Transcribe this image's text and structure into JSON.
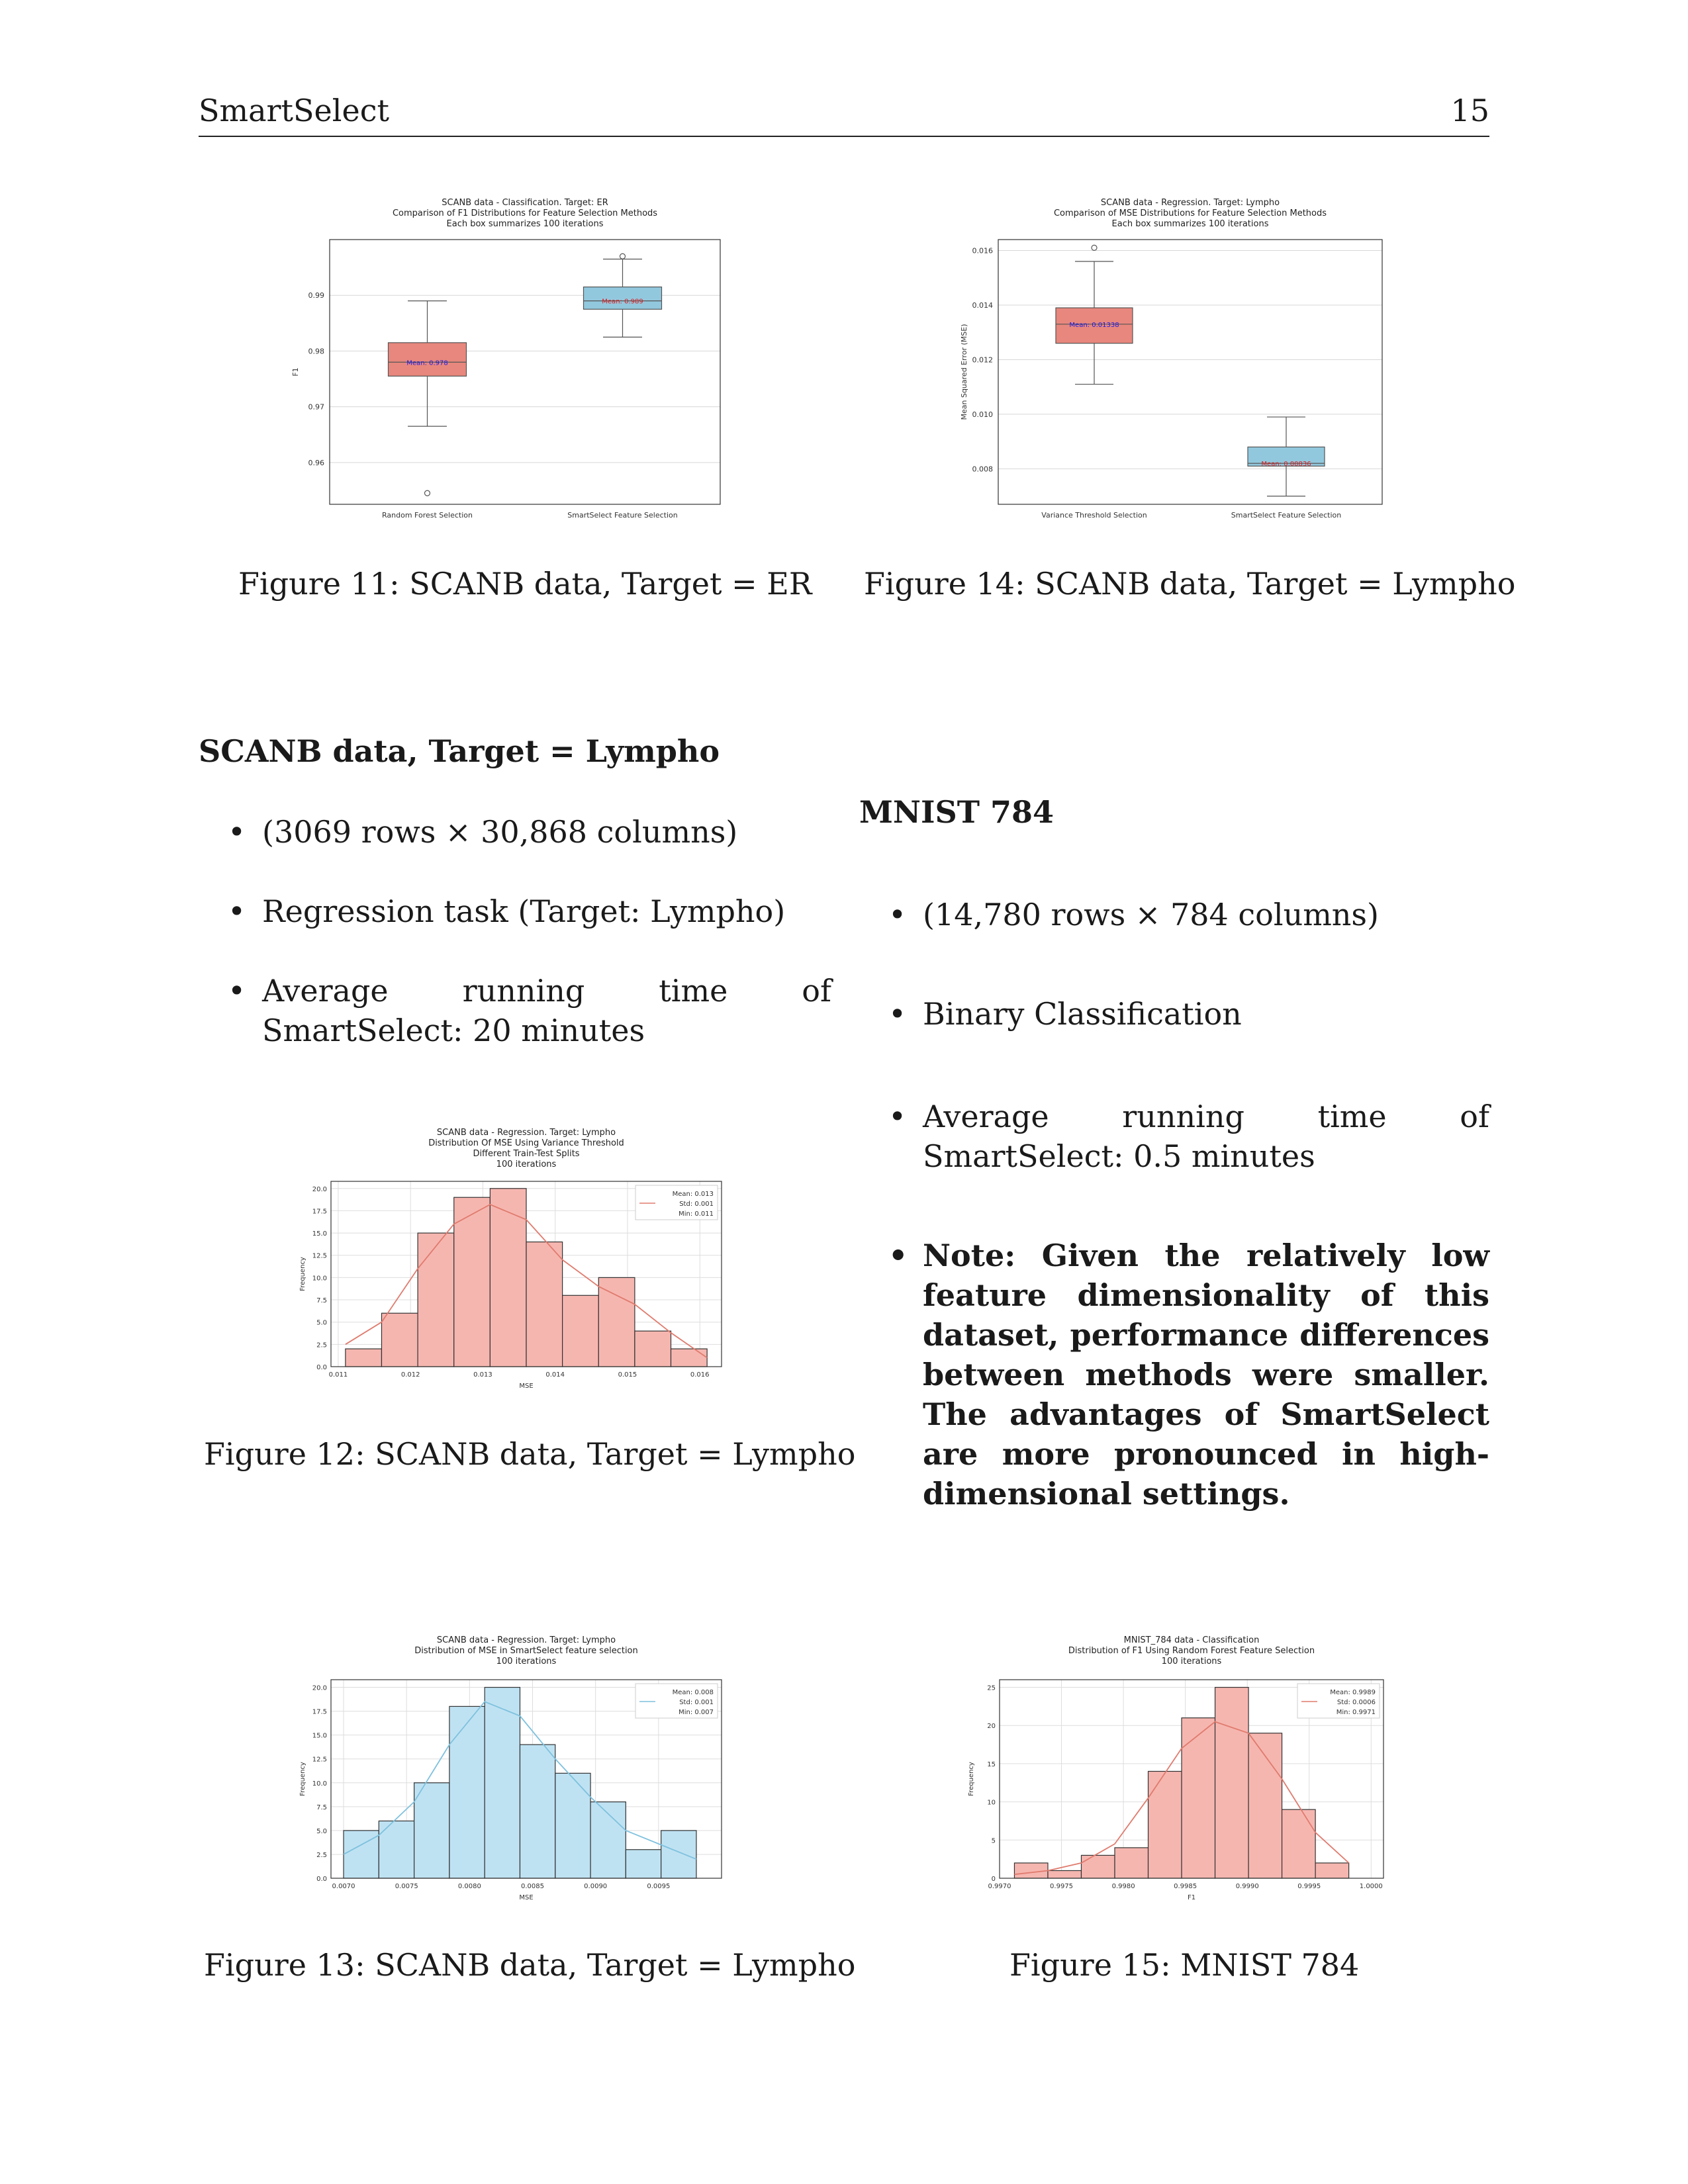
{
  "header": {
    "running_title": "SmartSelect",
    "page_number": "15"
  },
  "captions": {
    "fig11": "Figure 11: SCANB data, Target = ER",
    "fig14": "Figure 14: SCANB data, Target = Lympho",
    "fig12": "Figure 12: SCANB data, Target = Lympho",
    "fig13": "Figure 13: SCANB data, Target = Lympho",
    "fig15": "Figure 15: MNIST 784"
  },
  "left_section": {
    "title": "SCANB data, Target = Lympho",
    "bullets": [
      "(3069 rows × 30,868 columns)",
      "Regression task (Target: Lympho)",
      "Average running time of SmartSelect: 20 minutes"
    ]
  },
  "right_section": {
    "title": "MNIST 784",
    "bullets": [
      "(14,780 rows × 784 columns)",
      "Binary Classification",
      "Average running time of SmartSelect: 0.5 minutes"
    ],
    "note": "Note: Given the relatively low feature dimensionality of this dataset, performance differences between methods were smaller. The advantages of SmartSelect are more pronounced in high-dimensional settings."
  },
  "bullet_symbol": "•",
  "colors": {
    "salmon_box": "#e8877d",
    "blue_box": "#92c8de",
    "salmon_hist": "#f6b6b0",
    "blue_hist": "#bfe2f2",
    "salmon_line": "#e07b6e",
    "blue_line": "#7ec1de"
  },
  "chart_data": [
    {
      "id": "fig11",
      "type": "box",
      "title_lines": [
        "SCANB data - Classification. Target: ER",
        "Comparison of F1 Distributions for Feature Selection Methods",
        "Each box summarizes 100 iterations"
      ],
      "xlabel": "",
      "ylabel": "F1",
      "ylim": [
        0.9525,
        1.0
      ],
      "yticks": [
        "0.96",
        "0.97",
        "0.98",
        "0.99"
      ],
      "ytick_values": [
        0.96,
        0.97,
        0.98,
        0.99
      ],
      "boxes": [
        {
          "category": "Random Forest Selection",
          "whisker_low": 0.9665,
          "q1": 0.9755,
          "median": 0.978,
          "q3": 0.9815,
          "whisker_high": 0.989,
          "outliers": [
            0.9545
          ],
          "mean_label": "Mean: 0.978",
          "color": "#e8877d",
          "mean_color": "#1a1ae6"
        },
        {
          "category": "SmartSelect Feature Selection",
          "whisker_low": 0.9825,
          "q1": 0.9875,
          "median": 0.989,
          "q3": 0.9915,
          "whisker_high": 0.9965,
          "outliers": [
            0.997
          ],
          "mean_label": "Mean: 0.989",
          "color": "#92c8de",
          "mean_color": "#e01b1b"
        }
      ]
    },
    {
      "id": "fig14",
      "type": "box",
      "title_lines": [
        "SCANB data - Regression. Target: Lympho",
        "Comparison of MSE Distributions for Feature Selection Methods",
        "Each box summarizes 100 iterations"
      ],
      "xlabel": "",
      "ylabel": "Mean Squared Error (MSE)",
      "ylim": [
        0.0067,
        0.0164
      ],
      "yticks": [
        "0.008",
        "0.010",
        "0.012",
        "0.014",
        "0.016"
      ],
      "ytick_values": [
        0.008,
        0.01,
        0.012,
        0.014,
        0.016
      ],
      "boxes": [
        {
          "category": "Variance Threshold Selection",
          "whisker_low": 0.0111,
          "q1": 0.0126,
          "median": 0.0133,
          "q3": 0.0139,
          "whisker_high": 0.0156,
          "outliers": [
            0.0161
          ],
          "mean_label": "Mean: 0.01338",
          "color": "#e8877d",
          "mean_color": "#1a1ae6"
        },
        {
          "category": "SmartSelect Feature Selection",
          "whisker_low": 0.007,
          "q1": 0.0081,
          "median": 0.0082,
          "q3": 0.0088,
          "whisker_high": 0.0099,
          "outliers": [],
          "mean_label": "Mean: 0.00836",
          "color": "#92c8de",
          "mean_color": "#e01b1b"
        }
      ]
    },
    {
      "id": "fig12",
      "type": "histogram",
      "title_lines": [
        "SCANB data - Regression. Target: Lympho",
        "Distribution Of MSE Using Variance Threshold",
        "Different Train-Test Splits",
        "100 iterations"
      ],
      "xlabel": "MSE",
      "ylabel": "Frequency",
      "xlim": [
        0.0109,
        0.0163
      ],
      "ylim": [
        0,
        20.8
      ],
      "xticks": [
        "0.011",
        "0.012",
        "0.013",
        "0.014",
        "0.015",
        "0.016"
      ],
      "xtick_values": [
        0.011,
        0.012,
        0.013,
        0.014,
        0.015,
        0.016
      ],
      "yticks": [
        "0.0",
        "2.5",
        "5.0",
        "7.5",
        "10.0",
        "12.5",
        "15.0",
        "17.5",
        "20.0"
      ],
      "ytick_values": [
        0,
        2.5,
        5,
        7.5,
        10,
        12.5,
        15,
        17.5,
        20
      ],
      "bin_edges": [
        0.0111,
        0.0116,
        0.0121,
        0.0126,
        0.0131,
        0.0136,
        0.0141,
        0.0146,
        0.0151,
        0.0156,
        0.0161
      ],
      "counts": [
        2,
        6,
        15,
        19,
        20,
        14,
        8,
        10,
        4,
        2
      ],
      "kde": [
        [
          0.0111,
          2.5
        ],
        [
          0.0116,
          5.0
        ],
        [
          0.0121,
          11.0
        ],
        [
          0.0126,
          16.0
        ],
        [
          0.0131,
          18.2
        ],
        [
          0.0136,
          16.5
        ],
        [
          0.0141,
          12.0
        ],
        [
          0.0146,
          9.0
        ],
        [
          0.0151,
          7.0
        ],
        [
          0.0156,
          3.8
        ],
        [
          0.0161,
          1.0
        ]
      ],
      "legend": [
        "Mean: 0.013",
        "Std: 0.001",
        "Min: 0.011"
      ],
      "fill": "#f6b6b0",
      "line": "#e07b6e"
    },
    {
      "id": "fig13",
      "type": "histogram",
      "title_lines": [
        "SCANB data - Regression. Target: Lympho",
        "Distribution of MSE in SmartSelect feature selection",
        "100 iterations"
      ],
      "xlabel": "MSE",
      "ylabel": "Frequency",
      "xlim": [
        0.0069,
        0.01
      ],
      "ylim": [
        0,
        20.8
      ],
      "xticks": [
        "0.0070",
        "0.0075",
        "0.0080",
        "0.0085",
        "0.0090",
        "0.0095"
      ],
      "xtick_values": [
        0.007,
        0.0075,
        0.008,
        0.0085,
        0.009,
        0.0095
      ],
      "yticks": [
        "0.0",
        "2.5",
        "5.0",
        "7.5",
        "10.0",
        "12.5",
        "15.0",
        "17.5",
        "20.0"
      ],
      "ytick_values": [
        0,
        2.5,
        5,
        7.5,
        10,
        12.5,
        15,
        17.5,
        20
      ],
      "bin_edges": [
        0.007,
        0.00728,
        0.00756,
        0.00784,
        0.00812,
        0.0084,
        0.00868,
        0.00896,
        0.00924,
        0.00952,
        0.0098
      ],
      "counts": [
        5,
        6,
        10,
        18,
        20,
        14,
        11,
        8,
        3,
        5
      ],
      "kde": [
        [
          0.007,
          2.5
        ],
        [
          0.00728,
          4.5
        ],
        [
          0.00756,
          8.0
        ],
        [
          0.00784,
          14.0
        ],
        [
          0.00812,
          18.5
        ],
        [
          0.0084,
          17.0
        ],
        [
          0.00868,
          12.5
        ],
        [
          0.00896,
          8.5
        ],
        [
          0.00924,
          5.0
        ],
        [
          0.00952,
          3.5
        ],
        [
          0.0098,
          2.0
        ]
      ],
      "legend": [
        "Mean: 0.008",
        "Std: 0.001",
        "Min: 0.007"
      ],
      "fill": "#bfe2f2",
      "line": "#7ec1de"
    },
    {
      "id": "fig15",
      "type": "histogram",
      "title_lines": [
        "MNIST_784 data - Classification",
        "Distribution of F1 Using Random Forest Feature Selection",
        "100 iterations"
      ],
      "xlabel": "F1",
      "ylabel": "Frequency",
      "xlim": [
        0.997,
        1.0001
      ],
      "ylim": [
        0,
        26
      ],
      "xticks": [
        "0.9970",
        "0.9975",
        "0.9980",
        "0.9985",
        "0.9990",
        "0.9995",
        "1.0000"
      ],
      "xtick_values": [
        0.997,
        0.9975,
        0.998,
        0.9985,
        0.999,
        0.9995,
        1.0
      ],
      "yticks": [
        "0",
        "5",
        "10",
        "15",
        "20",
        "25"
      ],
      "ytick_values": [
        0,
        5,
        10,
        15,
        20,
        25
      ],
      "bin_edges": [
        0.99712,
        0.99739,
        0.99766,
        0.99793,
        0.9982,
        0.99847,
        0.99874,
        0.99901,
        0.99928,
        0.99955,
        0.99982
      ],
      "counts": [
        2,
        1,
        3,
        4,
        14,
        21,
        25,
        19,
        9,
        2
      ],
      "kde": [
        [
          0.99712,
          0.5
        ],
        [
          0.99739,
          1.0
        ],
        [
          0.99766,
          2.0
        ],
        [
          0.99793,
          4.5
        ],
        [
          0.9982,
          10.5
        ],
        [
          0.99847,
          17.0
        ],
        [
          0.99874,
          20.5
        ],
        [
          0.99901,
          19.0
        ],
        [
          0.99928,
          13.0
        ],
        [
          0.99955,
          6.0
        ],
        [
          0.99982,
          2.0
        ]
      ],
      "legend": [
        "Mean: 0.9989",
        "Std: 0.0006",
        "Min: 0.9971"
      ],
      "fill": "#f6b6b0",
      "line": "#e07b6e"
    }
  ]
}
